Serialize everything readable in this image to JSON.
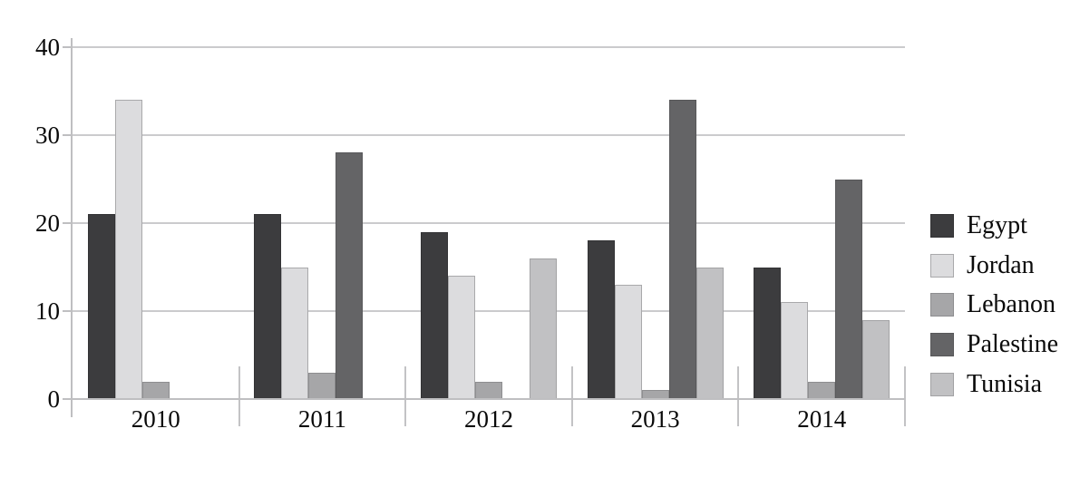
{
  "chart_data": {
    "type": "bar",
    "title": "",
    "xlabel": "",
    "ylabel": "",
    "categories": [
      "2010",
      "2011",
      "2012",
      "2013",
      "2014"
    ],
    "series": [
      {
        "name": "Egypt",
        "color": "#3c3c3e",
        "border": "#333335",
        "values": [
          21,
          21,
          19,
          18,
          15
        ]
      },
      {
        "name": "Jordan",
        "color": "#dcdcde",
        "border": "#a9a9ab",
        "values": [
          34,
          15,
          14,
          13,
          11
        ]
      },
      {
        "name": "Lebanon",
        "color": "#a6a6a8",
        "border": "#8e8e90",
        "values": [
          2,
          3,
          2,
          1,
          2
        ]
      },
      {
        "name": "Palestine",
        "color": "#646466",
        "border": "#58585a",
        "values": [
          0,
          28,
          0,
          34,
          25
        ]
      },
      {
        "name": "Tunisia",
        "color": "#c1c1c3",
        "border": "#a2a2a4",
        "values": [
          0,
          0,
          16,
          15,
          9
        ]
      }
    ],
    "ylim": [
      0,
      40
    ],
    "yticks": [
      0,
      10,
      20,
      30,
      40
    ],
    "grid": true,
    "legend_position": "right",
    "axis_color": "#bfbfc1",
    "grid_color": "#cbcbcd"
  }
}
